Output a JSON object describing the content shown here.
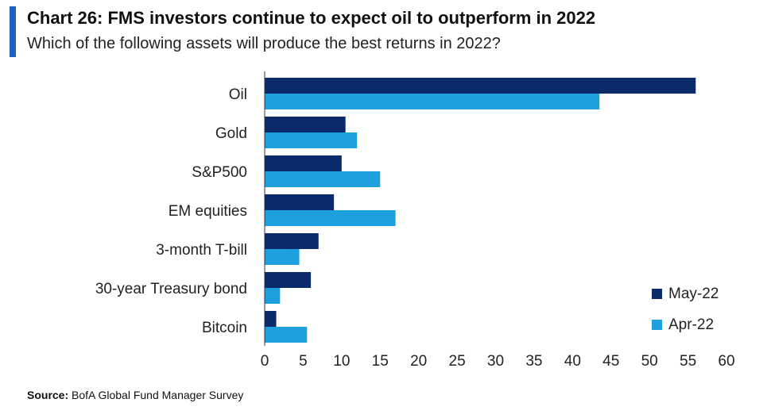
{
  "header": {
    "title": "Chart 26: FMS investors continue to expect oil to outperform in 2022",
    "subtitle": "Which of the following assets will produce the best returns in 2022?"
  },
  "footer": {
    "source_label": "Source:",
    "source_text": "BofA Global Fund Manager Survey"
  },
  "colors": {
    "accent": "#1f5fbf",
    "may": "#0b2a6b",
    "apr": "#1ea0df",
    "axis": "#333333"
  },
  "chart_data": {
    "type": "bar",
    "orientation": "horizontal",
    "categories": [
      "Oil",
      "Gold",
      "S&P500",
      "EM equities",
      "3-month T-bill",
      "30-year Treasury bond",
      "Bitcoin"
    ],
    "series": [
      {
        "name": "May-22",
        "values": [
          56,
          10.5,
          10,
          9,
          7,
          6,
          1.5
        ]
      },
      {
        "name": "Apr-22",
        "values": [
          43.5,
          12,
          15,
          17,
          4.5,
          2,
          5.5
        ]
      }
    ],
    "xlim": [
      0,
      60
    ],
    "xticks": [
      0,
      5,
      10,
      15,
      20,
      25,
      30,
      35,
      40,
      45,
      50,
      55,
      60
    ],
    "grid": false,
    "legend_position": "bottom-right"
  }
}
